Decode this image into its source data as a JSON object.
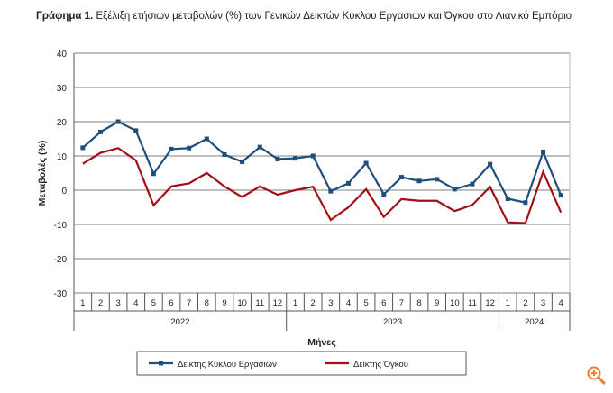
{
  "chart_data": {
    "type": "line",
    "title_bold": "Γράφημα 1.",
    "title": "Εξέλιξη ετήσιων μεταβολών (%) των Γενικών Δεικτών Κύκλου Εργασιών και Όγκου στο Λιανικό Εμπόριο",
    "xlabel": "Μήνες",
    "ylabel": "Μεταβολές  (%)",
    "ylim": [
      -30,
      40
    ],
    "yticks": [
      -30,
      -20,
      -10,
      0,
      10,
      20,
      30,
      40
    ],
    "grid": true,
    "legend_position": "bottom",
    "months": [
      "1",
      "2",
      "3",
      "4",
      "5",
      "6",
      "7",
      "8",
      "9",
      "10",
      "11",
      "12",
      "1",
      "2",
      "3",
      "4",
      "5",
      "6",
      "7",
      "8",
      "9",
      "10",
      "11",
      "12",
      "1",
      "2",
      "3",
      "4"
    ],
    "years": [
      {
        "label": "2022",
        "count": 12
      },
      {
        "label": "2023",
        "count": 12
      },
      {
        "label": "2024",
        "count": 4
      }
    ],
    "series": [
      {
        "name": "Δείκτης Κύκλου Εργασιών",
        "color": "#1F4E79",
        "marker": "square",
        "values": [
          12.4,
          17.0,
          20.0,
          17.4,
          4.8,
          12.0,
          12.3,
          15.0,
          10.4,
          8.3,
          12.6,
          9.1,
          9.3,
          10.0,
          -0.3,
          2.0,
          7.9,
          -1.2,
          3.8,
          2.7,
          3.2,
          0.3,
          1.8,
          7.6,
          -2.5,
          -3.6,
          11.2,
          -1.5
        ]
      },
      {
        "name": "Δείκτης Όγκου",
        "color": "#A50E16",
        "marker": "none",
        "values": [
          7.7,
          10.9,
          12.3,
          8.7,
          -4.4,
          1.1,
          2.0,
          5.0,
          1.1,
          -2.0,
          1.1,
          -1.3,
          0.0,
          1.0,
          -8.7,
          -5.0,
          0.3,
          -7.8,
          -2.6,
          -3.1,
          -3.1,
          -6.1,
          -4.3,
          1.0,
          -9.4,
          -9.6,
          5.4,
          -6.5
        ]
      }
    ]
  },
  "zoom_icon": "zoom-in-icon",
  "accent_color": "#F07C2A"
}
